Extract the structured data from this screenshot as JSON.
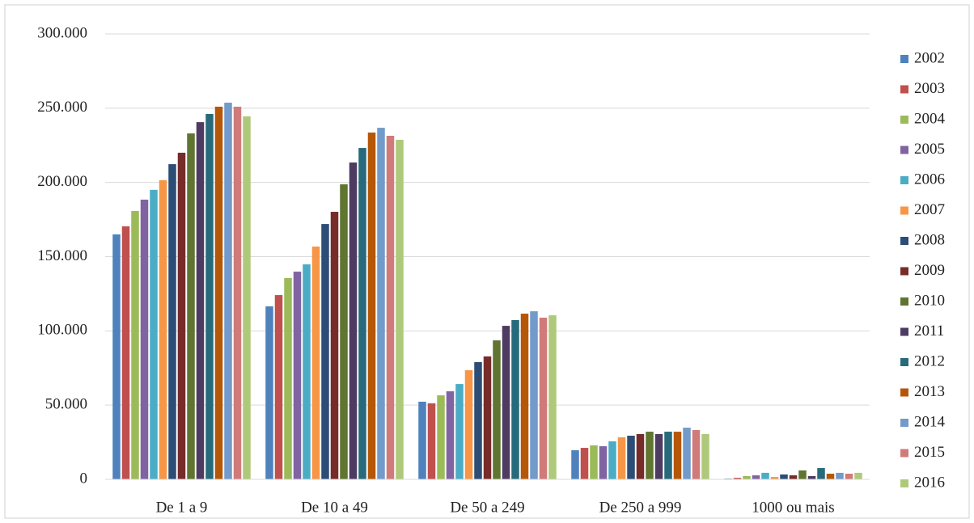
{
  "chart_data": {
    "type": "bar",
    "categories": [
      "De 1 a 9",
      "De 10 a 49",
      "De 50 a 249",
      "De 250 a 999",
      "1000 ou mais"
    ],
    "series": [
      {
        "name": "2002",
        "color": "#4f81bd",
        "values": [
          165000,
          116500,
          52300,
          19600,
          500
        ]
      },
      {
        "name": "2003",
        "color": "#c0504d",
        "values": [
          170400,
          124100,
          51200,
          21200,
          1000
        ]
      },
      {
        "name": "2004",
        "color": "#9bbb59",
        "values": [
          180800,
          135600,
          56600,
          22900,
          2200
        ]
      },
      {
        "name": "2005",
        "color": "#8064a2",
        "values": [
          188400,
          139900,
          59300,
          22300,
          2700
        ]
      },
      {
        "name": "2006",
        "color": "#4bacc6",
        "values": [
          195000,
          144800,
          64200,
          25600,
          4400
        ]
      },
      {
        "name": "2007",
        "color": "#f79646",
        "values": [
          201500,
          156800,
          73500,
          28300,
          1600
        ]
      },
      {
        "name": "2008",
        "color": "#2c4d75",
        "values": [
          212300,
          172000,
          79000,
          29400,
          3300
        ]
      },
      {
        "name": "2009",
        "color": "#772c2a",
        "values": [
          220000,
          180200,
          82800,
          30500,
          2700
        ]
      },
      {
        "name": "2010",
        "color": "#5f7530",
        "values": [
          233000,
          198700,
          93600,
          32100,
          6000
        ]
      },
      {
        "name": "2011",
        "color": "#4d3b62",
        "values": [
          240600,
          213400,
          103400,
          30500,
          2200
        ]
      },
      {
        "name": "2012",
        "color": "#276a7c",
        "values": [
          246100,
          223200,
          107300,
          32100,
          7600
        ]
      },
      {
        "name": "2013",
        "color": "#b65708",
        "values": [
          251000,
          233600,
          111600,
          32100,
          3800
        ]
      },
      {
        "name": "2014",
        "color": "#729aca",
        "values": [
          253700,
          236800,
          113200,
          34800,
          4400
        ]
      },
      {
        "name": "2015",
        "color": "#d07b7a",
        "values": [
          251000,
          231400,
          108900,
          33200,
          3800
        ]
      },
      {
        "name": "2016",
        "color": "#afc97a",
        "values": [
          244500,
          228700,
          110500,
          30500,
          4400
        ]
      }
    ],
    "ylim": [
      0,
      300000
    ],
    "yticks": [
      0,
      {
        "value": 50000,
        "label": "50.000"
      },
      {
        "value": 100000,
        "label": "100.000"
      },
      {
        "value": 150000,
        "label": "150.000"
      },
      {
        "value": 200000,
        "label": "200.000"
      },
      {
        "value": 250000,
        "label": "250.000"
      },
      {
        "value": 300000,
        "label": "300.000"
      }
    ],
    "grid": true,
    "legend": "right"
  }
}
